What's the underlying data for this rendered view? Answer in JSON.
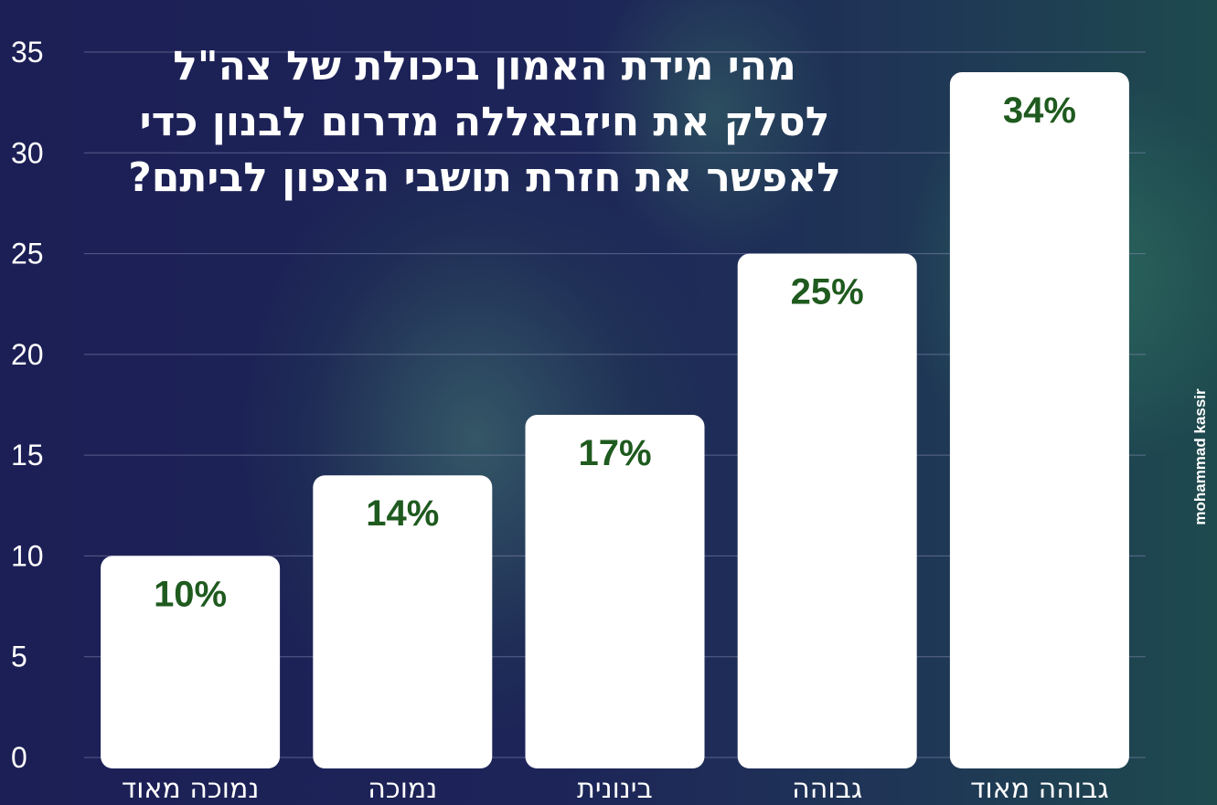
{
  "chart_data": {
    "type": "bar",
    "title_lines": [
      "מהי מידת האמון ביכולת של צה\"ל",
      "לסלק את חיזבאללה מדרום לבנון כדי",
      "לאפשר את חזרת תושבי הצפון לביתם?"
    ],
    "categories": [
      "נמוכה מאוד",
      "נמוכה",
      "בינונית",
      "גבוהה",
      "גבוהה מאוד"
    ],
    "values": [
      10,
      14,
      17,
      25,
      34
    ],
    "data_labels": [
      "10%",
      "14%",
      "17%",
      "25%",
      "34%"
    ],
    "ylim": [
      0,
      35
    ],
    "yticks": [
      "0",
      "5",
      "10",
      "15",
      "20",
      "25",
      "30",
      "35"
    ],
    "grid": true,
    "colors": {
      "bar": "#ffffff",
      "label": "#1f5a1f",
      "text": "#ffffff",
      "grid": "#8a8fb8"
    }
  },
  "watermark": "mohammad kassir"
}
